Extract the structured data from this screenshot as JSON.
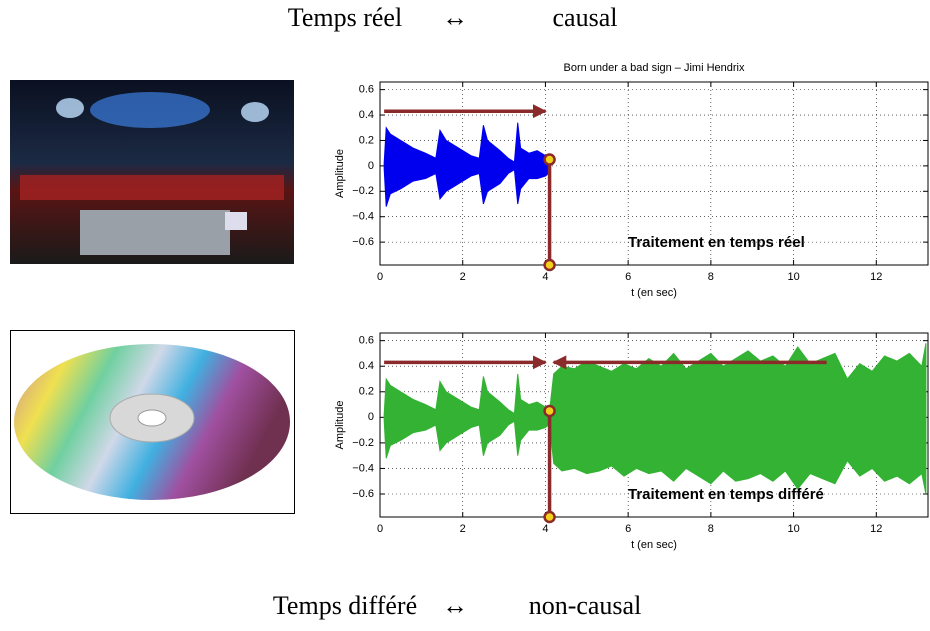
{
  "header": {
    "parts": [
      "Temps réel",
      "↔",
      "causal"
    ]
  },
  "footer": {
    "parts": [
      "Temps différé",
      "↔",
      "non-causal"
    ]
  },
  "chart_data": [
    {
      "type": "area",
      "title": "Born under a bad sign – Jimi Hendrix",
      "xlabel": "t (en sec)",
      "ylabel": "Amplitude",
      "xlim": [
        0,
        13.25
      ],
      "ylim": [
        -0.78,
        0.66
      ],
      "xticks": [
        0,
        2,
        4,
        6,
        8,
        10,
        12
      ],
      "yticks": [
        {
          "value": -0.6,
          "label": "−0.6"
        },
        {
          "value": -0.4,
          "label": "−0.4"
        },
        {
          "value": -0.2,
          "label": "−0.2"
        },
        0,
        0.2,
        0.4,
        0.6
      ],
      "grid": true,
      "color": "#0000ee",
      "x": [
        0.1,
        0.15,
        0.25,
        0.5,
        0.8,
        1.1,
        1.35,
        1.45,
        1.6,
        1.9,
        2.2,
        2.4,
        2.5,
        2.6,
        2.9,
        3.1,
        3.25,
        3.33,
        3.4,
        3.6,
        3.8,
        4.0,
        4.1
      ],
      "upper": [
        0.02,
        0.3,
        0.25,
        0.2,
        0.14,
        0.1,
        0.06,
        0.28,
        0.2,
        0.14,
        0.08,
        0.06,
        0.32,
        0.2,
        0.12,
        0.06,
        0.03,
        0.34,
        0.14,
        0.1,
        0.12,
        0.08,
        0.05
      ],
      "lower": [
        -0.02,
        -0.32,
        -0.22,
        -0.18,
        -0.12,
        -0.1,
        -0.06,
        -0.26,
        -0.2,
        -0.14,
        -0.08,
        -0.06,
        -0.3,
        -0.2,
        -0.14,
        -0.06,
        -0.03,
        -0.3,
        -0.18,
        -0.1,
        -0.1,
        -0.08,
        -0.05
      ],
      "annotation": {
        "text": "Traitement en temps réel",
        "color": "#1a1aee"
      },
      "marker_color": "#8b2a2a",
      "cursor_x": 4.1,
      "cursor_points": [
        0.05,
        -0.78
      ],
      "arrows": [
        {
          "from": 0.1,
          "to": 4.0,
          "y": 0.43
        }
      ]
    },
    {
      "type": "area",
      "xlabel": "t (en sec)",
      "ylabel": "Amplitude",
      "xlim": [
        0,
        13.25
      ],
      "ylim": [
        -0.78,
        0.66
      ],
      "xticks": [
        0,
        2,
        4,
        6,
        8,
        10,
        12
      ],
      "yticks": [
        {
          "value": -0.6,
          "label": "−0.6"
        },
        {
          "value": -0.4,
          "label": "−0.4"
        },
        {
          "value": -0.2,
          "label": "−0.2"
        },
        0,
        0.2,
        0.4,
        0.6
      ],
      "grid": true,
      "color": "#33b233",
      "x": [
        0.1,
        0.15,
        0.25,
        0.5,
        0.8,
        1.1,
        1.35,
        1.45,
        1.6,
        1.9,
        2.2,
        2.4,
        2.5,
        2.6,
        2.9,
        3.1,
        3.25,
        3.33,
        3.4,
        3.6,
        3.8,
        4.0,
        4.1,
        4.2,
        4.4,
        4.7,
        5.0,
        5.3,
        5.6,
        5.9,
        6.2,
        6.5,
        6.8,
        7.1,
        7.4,
        7.7,
        8.0,
        8.3,
        8.6,
        8.9,
        9.2,
        9.5,
        9.8,
        10.1,
        10.4,
        10.7,
        11.0,
        11.3,
        11.6,
        11.9,
        12.2,
        12.5,
        12.8,
        13.1,
        13.2
      ],
      "upper": [
        0.02,
        0.3,
        0.25,
        0.2,
        0.14,
        0.1,
        0.06,
        0.28,
        0.2,
        0.14,
        0.08,
        0.06,
        0.32,
        0.2,
        0.12,
        0.06,
        0.03,
        0.34,
        0.14,
        0.1,
        0.12,
        0.08,
        0.05,
        0.34,
        0.4,
        0.38,
        0.44,
        0.4,
        0.36,
        0.42,
        0.38,
        0.46,
        0.4,
        0.5,
        0.38,
        0.44,
        0.5,
        0.4,
        0.46,
        0.52,
        0.44,
        0.48,
        0.4,
        0.55,
        0.42,
        0.46,
        0.5,
        0.3,
        0.42,
        0.36,
        0.48,
        0.44,
        0.5,
        0.4,
        0.58
      ],
      "lower": [
        -0.02,
        -0.32,
        -0.22,
        -0.18,
        -0.12,
        -0.1,
        -0.06,
        -0.26,
        -0.2,
        -0.14,
        -0.08,
        -0.06,
        -0.3,
        -0.2,
        -0.14,
        -0.06,
        -0.03,
        -0.3,
        -0.18,
        -0.1,
        -0.1,
        -0.08,
        -0.05,
        -0.36,
        -0.42,
        -0.4,
        -0.44,
        -0.42,
        -0.38,
        -0.46,
        -0.4,
        -0.44,
        -0.42,
        -0.5,
        -0.4,
        -0.46,
        -0.52,
        -0.42,
        -0.5,
        -0.48,
        -0.44,
        -0.5,
        -0.42,
        -0.56,
        -0.44,
        -0.48,
        -0.52,
        -0.34,
        -0.46,
        -0.4,
        -0.5,
        -0.46,
        -0.52,
        -0.44,
        -0.6
      ],
      "annotation": {
        "text": "Traitement en temps différé",
        "color": "#33b233"
      },
      "marker_color": "#8b2a2a",
      "cursor_x": 4.1,
      "cursor_points": [
        0.05,
        -0.78
      ],
      "arrows": [
        {
          "from": 0.1,
          "to": 4.0,
          "y": 0.43
        },
        {
          "from": 10.8,
          "to": 4.2,
          "y": 0.43
        }
      ]
    }
  ]
}
